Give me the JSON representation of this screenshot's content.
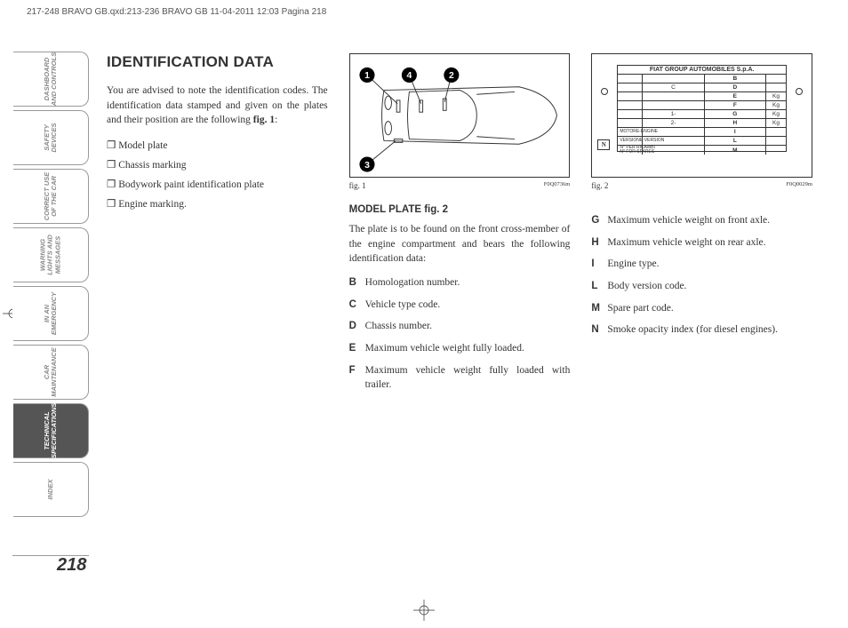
{
  "header_line": "217-248 BRAVO GB.qxd:213-236 BRAVO GB  11-04-2011  12:03  Pagina 218",
  "tabs": [
    {
      "label": "DASHBOARD\nAND CONTROLS"
    },
    {
      "label": "SAFETY\nDEVICES"
    },
    {
      "label": "CORRECT USE\nOF THE CAR"
    },
    {
      "label": "WARNING\nLIGHTS AND\nMESSAGES"
    },
    {
      "label": "IN AN\nEMERGENCY"
    },
    {
      "label": "CAR\nMAINTENANCE"
    },
    {
      "label": "TECHNICAL\nSPECIFICATIONS",
      "active": true
    },
    {
      "label": "INDEX"
    }
  ],
  "page_number": "218",
  "col1": {
    "heading": "IDENTIFICATION DATA",
    "intro": "You are advised to note the identification codes. The identification data stamped and given on the plates and their position are the following ",
    "intro_bold": "fig. 1",
    "intro_after": ":",
    "bullets": [
      "Model plate",
      "Chassis marking",
      "Bodywork paint identification plate",
      "Engine marking."
    ]
  },
  "col2": {
    "fig1_callouts": [
      "1",
      "4",
      "2",
      "3"
    ],
    "fig1_code": "F0Q0736m",
    "fig1_caption": "fig. 1",
    "subhead": "MODEL PLATE fig. 2",
    "para": "The plate is to be found on the front cross-member of the engine compartment and bears the following identification data:",
    "defs": [
      {
        "k": "B",
        "v": "Homologation number."
      },
      {
        "k": "C",
        "v": "Vehicle type code."
      },
      {
        "k": "D",
        "v": "Chassis number."
      },
      {
        "k": "E",
        "v": "Maximum vehicle weight fully loaded."
      },
      {
        "k": "F",
        "v": "Maximum vehicle weight fully loaded with trailer."
      }
    ]
  },
  "col3": {
    "plate_header": "FIAT GROUP AUTOMOBILES S.p.A.",
    "plate_rows": [
      [
        "",
        "",
        "B",
        ""
      ],
      [
        "",
        "C",
        "D",
        ""
      ],
      [
        "",
        "",
        "E",
        "Kg"
      ],
      [
        "",
        "",
        "F",
        "Kg"
      ],
      [
        "",
        "1-",
        "G",
        "Kg"
      ],
      [
        "",
        "2-",
        "H",
        "Kg"
      ],
      [
        "MOTORE-ENGINE",
        "",
        "I",
        ""
      ],
      [
        "VERSIONE-VERSION",
        "",
        "L",
        ""
      ],
      [
        "N° PER RICAMBI\nN° FOR SPARES",
        "",
        "M",
        ""
      ]
    ],
    "n_label": "N",
    "fig2_code": "F0Q0029m",
    "fig2_caption": "fig. 2",
    "defs": [
      {
        "k": "G",
        "v": "Maximum vehicle weight on front axle."
      },
      {
        "k": "H",
        "v": "Maximum vehicle weight on rear axle."
      },
      {
        "k": "I",
        "v": "Engine type."
      },
      {
        "k": "L",
        "v": "Body version code."
      },
      {
        "k": "M",
        "v": "Spare part code."
      },
      {
        "k": "N",
        "v": "Smoke opacity index (for diesel engines)."
      }
    ]
  }
}
